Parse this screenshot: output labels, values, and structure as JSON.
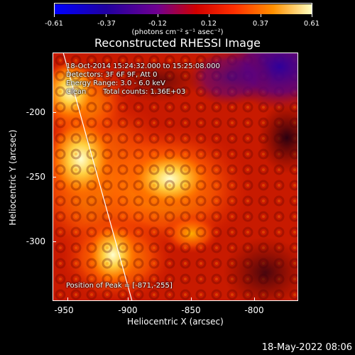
{
  "colorbar": {
    "ticks": [
      "-0.61",
      "-0.37",
      "-0.12",
      "0.12",
      "0.37",
      "0.61"
    ],
    "units": "(photons cm⁻² s⁻¹ asec⁻²)"
  },
  "title": "Reconstructed RHESSI Image",
  "annotations": {
    "time_range": "18-Oct-2014 15:24:32.000 to 15:25:08.000",
    "detectors": "Detectors: 3F 6F 9F, Att 0",
    "energy_range": "Energy Range: 3.0 - 6.0 keV",
    "algorithm": "Clean",
    "total_counts": "Total counts: 1.36E+03",
    "peak_position": "Position of Peak = [-871,-255]"
  },
  "axes": {
    "xlabel": "Heliocentric X (arcsec)",
    "ylabel": "Heliocentric Y (arcsec)",
    "xticks": [
      "-950",
      "-900",
      "-850",
      "-800"
    ],
    "yticks": [
      "-200",
      "-250",
      "-300"
    ],
    "xlim": [
      -960,
      -770
    ],
    "ylim": [
      -345,
      -153
    ]
  },
  "footer_date": "18-May-2022 08:06"
}
